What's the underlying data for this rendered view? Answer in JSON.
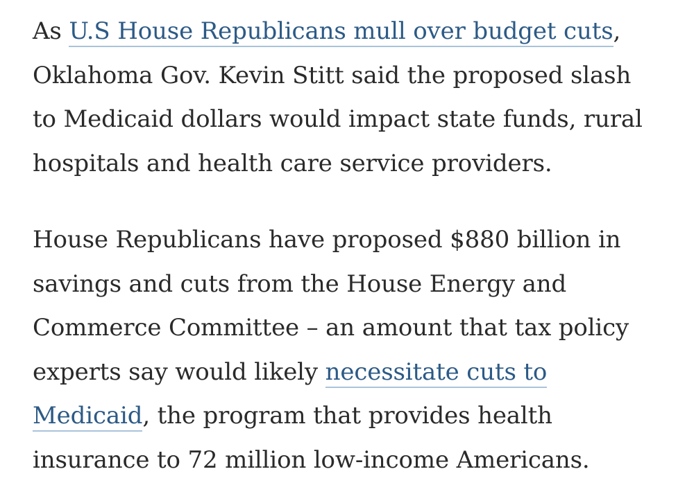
{
  "article": {
    "paragraph1": {
      "prefix": "As ",
      "link_text": "U.S House Republicans mull over budget cuts",
      "suffix_comma": ",",
      "line2": "Oklahoma Gov. Kevin Stitt said the proposed slash",
      "line3": "to Medicaid dollars would impact state funds, rural",
      "line4": "hospitals and health care service providers."
    },
    "paragraph2": {
      "line1": "House Republicans have proposed $880 billion in",
      "line2": "savings and cuts from the House Energy and",
      "line3": "Commerce Committee – an amount that tax policy",
      "line4_prefix": "experts say would likely ",
      "link_part1": "necessitate cuts to",
      "link_part2": "Medicaid",
      "line5_suffix": ", the program that provides health",
      "line6": "insurance to 72 million low-income Americans."
    }
  }
}
